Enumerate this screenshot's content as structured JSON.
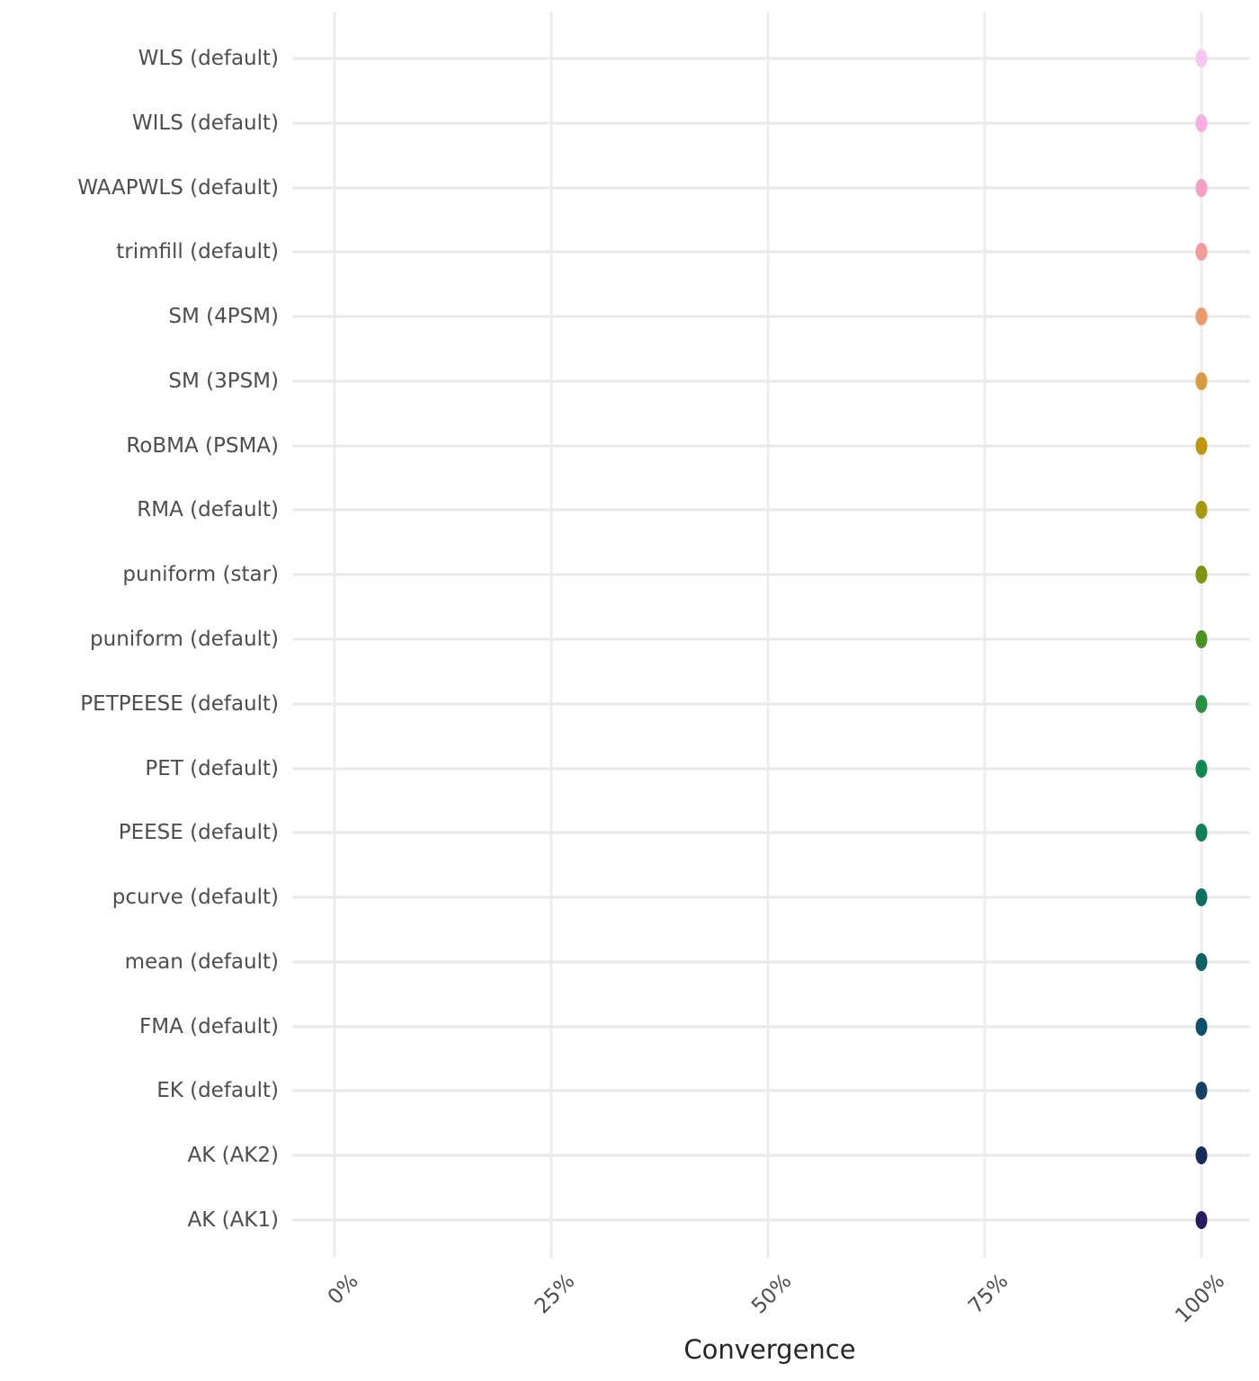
{
  "chart_data": {
    "type": "scatter",
    "subtype": "horizontal_dot_plot",
    "title": "",
    "xlabel": "Convergence",
    "ylabel": "",
    "x_tick_labels": [
      "0%",
      "25%",
      "50%",
      "75%",
      "100%"
    ],
    "x_tick_values": [
      0,
      25,
      50,
      75,
      100
    ],
    "xlim": [
      0,
      100
    ],
    "x_tick_rotation_deg": 45,
    "grid": "major-only",
    "legend": "none",
    "background_color": "#ffffff",
    "gridline_color": "#e9e9e9",
    "categories": [
      "WLS (default)",
      "WILS (default)",
      "WAAPWLS (default)",
      "trimfill (default)",
      "SM (4PSM)",
      "SM (3PSM)",
      "RoBMA (PSMA)",
      "RMA (default)",
      "puniform (star)",
      "puniform (default)",
      "PETPEESE (default)",
      "PET (default)",
      "PEESE (default)",
      "pcurve (default)",
      "mean (default)",
      "FMA (default)",
      "EK (default)",
      "AK (AK2)",
      "AK (AK1)"
    ],
    "values": [
      100,
      100,
      100,
      100,
      100,
      100,
      100,
      100,
      100,
      100,
      100,
      100,
      100,
      100,
      100,
      100,
      100,
      100,
      100
    ],
    "point_colors": [
      "#F8C6EE",
      "#F8AEE0",
      "#F79EC6",
      "#F59B95",
      "#EB9B6C",
      "#DB9A41",
      "#C29410",
      "#A4990F",
      "#7D9610",
      "#4A9320",
      "#2A9140",
      "#108950",
      "#0E7D5A",
      "#0D7062",
      "#0D6066",
      "#10506B",
      "#154168",
      "#142D5F",
      "#2B1A5E"
    ]
  }
}
